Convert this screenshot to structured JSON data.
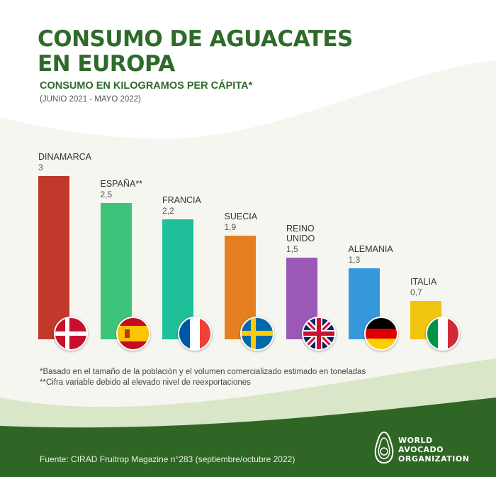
{
  "title": [
    "CONSUMO DE AGUACATES",
    "EN EUROPA"
  ],
  "subtitle": "CONSUMO EN KILOGRAMOS PER CÁPITA*",
  "period": "(JUNIO 2021 - MAYO 2022)",
  "colors": {
    "title_green": "#2e6a2a",
    "footer_green": "#2f6626"
  },
  "chart_data": {
    "type": "bar",
    "categories": [
      "DINAMARCA",
      "ESPAÑA**",
      "FRANCIA",
      "SUECIA",
      "REINO UNIDO",
      "ALEMANIA",
      "ITALIA"
    ],
    "values": [
      3,
      2.5,
      2.2,
      1.9,
      1.5,
      1.3,
      0.7
    ],
    "value_labels": [
      "3",
      "2,5",
      "2,2",
      "1,9",
      "1,5",
      "1,3",
      "0,7"
    ],
    "colors": [
      "#c0392b",
      "#3ec47a",
      "#1fbf9a",
      "#e67e22",
      "#9b59b6",
      "#3498db",
      "#f1c40f"
    ],
    "flags": [
      "denmark-flag",
      "spain-flag",
      "france-flag",
      "sweden-flag",
      "united-kingdom-flag",
      "germany-flag",
      "italy-flag"
    ],
    "ylim": [
      0,
      3
    ]
  },
  "notes": [
    "*Basado en el tamaño de la población y el volumen comercializado estimado en toneladas",
    "**Cifra variable debido al elevado nivel de reexportaciones"
  ],
  "source": "Fuente: CIRAD Fruitrop Magazine n°283 (septiembre/octubre 2022)",
  "logo": {
    "lines": [
      "WORLD",
      "AVOCADO",
      "ORGANIZATION"
    ]
  }
}
